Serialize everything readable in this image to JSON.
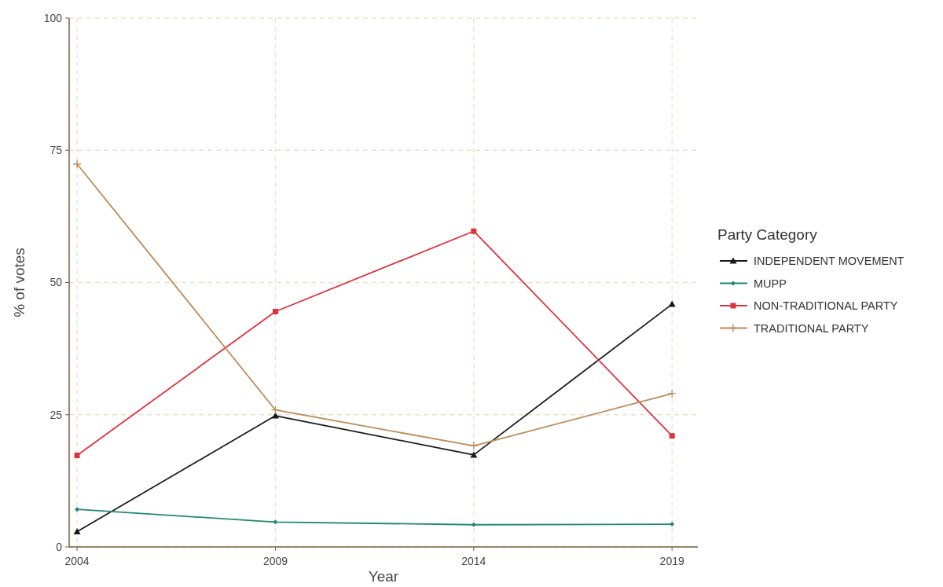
{
  "chart_data": {
    "type": "line",
    "xlabel": "Year",
    "ylabel": "% of votes",
    "legend_title": "Party Category",
    "x": [
      2004,
      2009,
      2014,
      2019
    ],
    "xlim": [
      2003.8,
      2019.65
    ],
    "xticks": [
      2004,
      2009,
      2014,
      2019
    ],
    "ylim": [
      0,
      100
    ],
    "yticks": [
      0,
      25,
      50,
      75,
      100
    ],
    "grid": true,
    "legend": "right",
    "series": [
      {
        "name": "INDEPENDENT MOVEMENT",
        "color": "#1a1a1a",
        "marker": "triangle",
        "values": [
          2.9,
          24.8,
          17.4,
          45.9
        ]
      },
      {
        "name": "MUPP",
        "color": "#1f8a70",
        "marker": "diamond",
        "values": [
          7.1,
          4.7,
          4.2,
          4.3
        ]
      },
      {
        "name": "NON-TRADITIONAL PARTY",
        "color": "#e0323c",
        "marker": "square",
        "values": [
          17.3,
          44.5,
          59.7,
          21.0
        ]
      },
      {
        "name": "TRADITIONAL PARTY",
        "color": "#c08a58",
        "marker": "cross",
        "values": [
          72.4,
          25.9,
          19.1,
          29.0
        ]
      }
    ]
  }
}
